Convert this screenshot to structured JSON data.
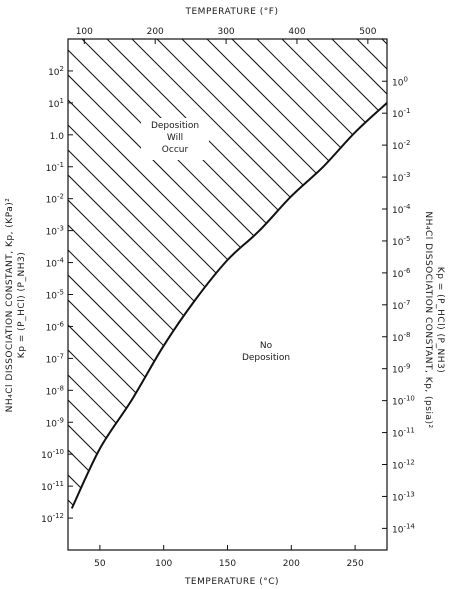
{
  "chart_data": {
    "type": "line",
    "x_bottom": {
      "label": "TEMPERATURE (°C)",
      "range": [
        25,
        275
      ],
      "ticks": [
        50,
        100,
        150,
        200,
        250
      ]
    },
    "x_top": {
      "label": "TEMPERATURE (°F)",
      "ticks": [
        100,
        200,
        300,
        400,
        500
      ]
    },
    "y_left": {
      "label_line1": "NH₄Cl DISSOCIATION CONSTANT, Kp, (KPa)²",
      "label_line2": "Kp = (P_HCl) (P_NH3)",
      "scale": "log",
      "range": [
        1e-13,
        1000.0
      ],
      "ticks": [
        {
          "value": 100.0,
          "base": "10",
          "exp": "2"
        },
        {
          "value": 10.0,
          "base": "10",
          "exp": "1"
        },
        {
          "value": 1.0,
          "base": "1.0",
          "exp": ""
        },
        {
          "value": 0.1,
          "base": "10",
          "exp": "-1"
        },
        {
          "value": 0.01,
          "base": "10",
          "exp": "-2"
        },
        {
          "value": 0.001,
          "base": "10",
          "exp": "-3"
        },
        {
          "value": 0.0001,
          "base": "10",
          "exp": "-4"
        },
        {
          "value": 1e-05,
          "base": "10",
          "exp": "-5"
        },
        {
          "value": 1e-06,
          "base": "10",
          "exp": "-6"
        },
        {
          "value": 1e-07,
          "base": "10",
          "exp": "-7"
        },
        {
          "value": 1e-08,
          "base": "10",
          "exp": "-8"
        },
        {
          "value": 1e-09,
          "base": "10",
          "exp": "-9"
        },
        {
          "value": 1e-10,
          "base": "10",
          "exp": "-10"
        },
        {
          "value": 1e-11,
          "base": "10",
          "exp": "-11"
        },
        {
          "value": 1e-12,
          "base": "10",
          "exp": "-12"
        }
      ]
    },
    "y_right": {
      "label_line1": "NH₄Cl DISSOCIATION CONSTANT, Kp, (psia)²",
      "label_line2": "Kp = (P_HCl) (P_NH3)",
      "ticks": [
        {
          "base": "10",
          "exp": "0"
        },
        {
          "base": "10",
          "exp": "-1"
        },
        {
          "base": "10",
          "exp": "-2"
        },
        {
          "base": "10",
          "exp": "-3"
        },
        {
          "base": "10",
          "exp": "-4"
        },
        {
          "base": "10",
          "exp": "-5"
        },
        {
          "base": "10",
          "exp": "-6"
        },
        {
          "base": "10",
          "exp": "-7"
        },
        {
          "base": "10",
          "exp": "-8"
        },
        {
          "base": "10",
          "exp": "-9"
        },
        {
          "base": "10",
          "exp": "-10"
        },
        {
          "base": "10",
          "exp": "-11"
        },
        {
          "base": "10",
          "exp": "-12"
        },
        {
          "base": "10",
          "exp": "-13"
        },
        {
          "base": "10",
          "exp": "-14"
        }
      ]
    },
    "series": [
      {
        "x": [
          28,
          50,
          75,
          100,
          125,
          150,
          175,
          200,
          225,
          250,
          275
        ],
        "y": [
          2e-12,
          1.5e-10,
          5e-09,
          2.5e-07,
          7e-06,
          0.00012,
          0.001,
          0.012,
          0.1,
          1.2,
          10.0
        ]
      }
    ],
    "regions": [
      {
        "label_lines": [
          "Deposition",
          "Will",
          "Occur"
        ],
        "fill": "hatched"
      },
      {
        "label_lines": [
          "No",
          "Deposition"
        ],
        "fill": "none"
      }
    ],
    "grid": false
  }
}
